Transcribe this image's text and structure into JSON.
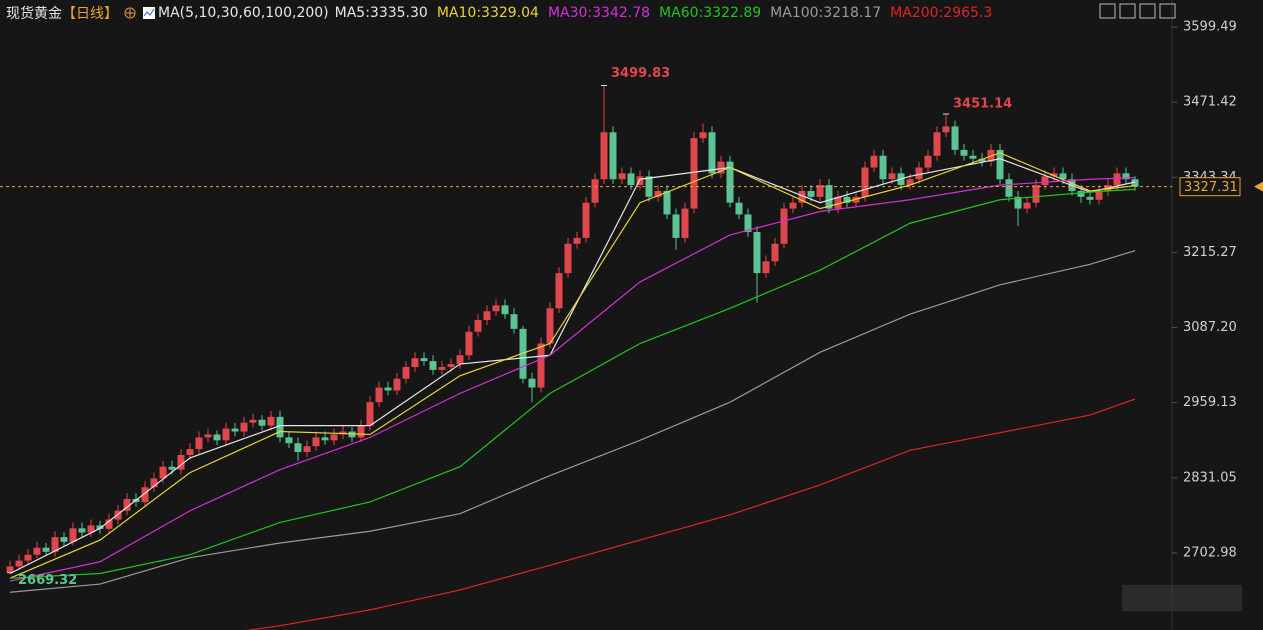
{
  "chart_data": {
    "type": "candlestick",
    "instrument": "现货黄金",
    "period": "【日线】",
    "indicator": "MA(5,10,30,60,100,200)",
    "up_color": "#e0474c",
    "down_color": "#5cc394",
    "ylim": [
      2571.7,
      3645.5
    ],
    "yticks": [
      3599.49,
      3471.42,
      3343.34,
      3215.27,
      {
        "value": 3087.2,
        "label": "3087.20"
      },
      2959.13,
      2831.05,
      2702.98
    ],
    "open": [
      2670,
      2680,
      2690,
      2700,
      2712,
      2705,
      2730,
      2722,
      2745,
      2738,
      2750,
      2744,
      2760,
      2775,
      2795,
      2790,
      2815,
      2830,
      2850,
      2845,
      2870,
      2880,
      2900,
      2905,
      2895,
      2915,
      2910,
      2925,
      2930,
      2920,
      2935,
      2900,
      2890,
      2875,
      2885,
      2900,
      2895,
      2905,
      2910,
      2900,
      2920,
      2960,
      2985,
      2980,
      3000,
      3020,
      3035,
      3030,
      3015,
      3020,
      3025,
      3040,
      3080,
      3100,
      3115,
      3125,
      3110,
      3085,
      3000,
      2985,
      3060,
      3120,
      3180,
      3230,
      3240,
      3300,
      3340,
      3420,
      3340,
      3350,
      3330,
      3345,
      3310,
      3320,
      3280,
      3240,
      3290,
      3410,
      3420,
      3350,
      3370,
      3300,
      3280,
      3250,
      3180,
      3200,
      3230,
      3290,
      3300,
      3320,
      3310,
      3330,
      3290,
      3310,
      3300,
      3310,
      3360,
      3380,
      3340,
      3350,
      3330,
      3340,
      3360,
      3380,
      3420,
      3430,
      3390,
      3380,
      3375,
      3370,
      3390,
      3340,
      3310,
      3290,
      3300,
      3330,
      3345,
      3350,
      3340,
      3320,
      3310,
      3305,
      3320,
      3330,
      3350,
      3340
    ],
    "high": [
      2690,
      2700,
      2710,
      2722,
      2720,
      2740,
      2738,
      2755,
      2755,
      2760,
      2758,
      2770,
      2785,
      2805,
      2805,
      2825,
      2840,
      2860,
      2860,
      2880,
      2890,
      2910,
      2915,
      2912,
      2925,
      2925,
      2935,
      2940,
      2938,
      2945,
      2945,
      2910,
      2900,
      2895,
      2910,
      2910,
      2915,
      2920,
      2918,
      2930,
      2970,
      2995,
      2995,
      3010,
      3030,
      3045,
      3045,
      3040,
      3030,
      3035,
      3050,
      3090,
      3110,
      3125,
      3135,
      3135,
      3120,
      3090,
      3010,
      3070,
      3130,
      3190,
      3240,
      3250,
      3310,
      3350,
      3499.83,
      3430,
      3360,
      3360,
      3355,
      3355,
      3330,
      3330,
      3290,
      3300,
      3420,
      3435,
      3430,
      3380,
      3380,
      3310,
      3290,
      3260,
      3210,
      3240,
      3300,
      3310,
      3330,
      3330,
      3340,
      3340,
      3320,
      3320,
      3320,
      3370,
      3390,
      3390,
      3360,
      3360,
      3350,
      3370,
      3390,
      3430,
      3451.14,
      3440,
      3400,
      3390,
      3385,
      3400,
      3400,
      3350,
      3320,
      3310,
      3340,
      3355,
      3360,
      3360,
      3350,
      3330,
      3320,
      3330,
      3340,
      3360,
      3360,
      3345
    ],
    "low": [
      2669.32,
      2674,
      2684,
      2694,
      2698,
      2697,
      2715,
      2716,
      2730,
      2730,
      2736,
      2738,
      2752,
      2767,
      2782,
      2782,
      2807,
      2822,
      2837,
      2837,
      2862,
      2872,
      2892,
      2887,
      2887,
      2902,
      2902,
      2917,
      2912,
      2912,
      2892,
      2882,
      2860,
      2867,
      2877,
      2887,
      2887,
      2897,
      2892,
      2892,
      2912,
      2952,
      2972,
      2972,
      2992,
      3012,
      3022,
      3007,
      3007,
      3012,
      3017,
      3032,
      3072,
      3092,
      3107,
      3102,
      3077,
      2992,
      2960,
      2977,
      3052,
      3112,
      3172,
      3222,
      3232,
      3292,
      3332,
      3332,
      3332,
      3322,
      3322,
      3302,
      3302,
      3272,
      3220,
      3232,
      3282,
      3402,
      3342,
      3342,
      3292,
      3272,
      3242,
      3130,
      3172,
      3192,
      3222,
      3282,
      3292,
      3302,
      3302,
      3282,
      3282,
      3292,
      3292,
      3302,
      3352,
      3332,
      3332,
      3322,
      3322,
      3332,
      3352,
      3372,
      3412,
      3382,
      3372,
      3367,
      3362,
      3362,
      3332,
      3302,
      3260,
      3282,
      3292,
      3322,
      3337,
      3332,
      3312,
      3300,
      3297,
      3297,
      3312,
      3322,
      3332,
      3320
    ],
    "close": [
      2680,
      2690,
      2700,
      2712,
      2705,
      2730,
      2722,
      2745,
      2738,
      2750,
      2744,
      2760,
      2775,
      2795,
      2790,
      2815,
      2830,
      2850,
      2845,
      2870,
      2880,
      2900,
      2905,
      2895,
      2915,
      2910,
      2925,
      2930,
      2920,
      2935,
      2900,
      2890,
      2875,
      2885,
      2900,
      2895,
      2905,
      2910,
      2900,
      2920,
      2960,
      2985,
      2980,
      3000,
      3020,
      3035,
      3030,
      3015,
      3020,
      3025,
      3040,
      3080,
      3100,
      3115,
      3125,
      3110,
      3085,
      3000,
      2985,
      3060,
      3120,
      3180,
      3230,
      3240,
      3300,
      3340,
      3420,
      3340,
      3350,
      3330,
      3345,
      3310,
      3320,
      3280,
      3240,
      3290,
      3410,
      3420,
      3350,
      3370,
      3300,
      3280,
      3250,
      3180,
      3200,
      3230,
      3290,
      3300,
      3320,
      3310,
      3330,
      3290,
      3310,
      3300,
      3310,
      3360,
      3380,
      3340,
      3350,
      3330,
      3340,
      3360,
      3380,
      3420,
      3430,
      3390,
      3380,
      3375,
      3370,
      3390,
      3340,
      3310,
      3290,
      3300,
      3330,
      3345,
      3350,
      3340,
      3320,
      3310,
      3305,
      3320,
      3330,
      3350,
      3340,
      3327.31
    ],
    "ma_series": [
      {
        "name": "MA5",
        "color": "#e6e6e6",
        "x": [
          0,
          10,
          20,
          30,
          40,
          50,
          60,
          70,
          80,
          90,
          100,
          110,
          120,
          125
        ],
        "values": [
          2668,
          2745,
          2865,
          2920,
          2920,
          3025,
          3040,
          3340,
          3360,
          3300,
          3345,
          3375,
          3318,
          3335.3
        ],
        "value_labels": [
          null,
          null,
          null,
          null,
          null,
          null,
          null,
          null,
          null,
          null,
          null,
          null,
          null,
          "3335.30"
        ]
      },
      {
        "name": "MA10",
        "color": "#e8d43a",
        "x": [
          0,
          10,
          20,
          30,
          40,
          50,
          60,
          70,
          80,
          90,
          100,
          110,
          120,
          125
        ],
        "values": [
          2660,
          2725,
          2840,
          2910,
          2905,
          3005,
          3060,
          3300,
          3360,
          3290,
          3330,
          3385,
          3320,
          3329.04
        ],
        "value_labels": [
          null,
          null,
          null,
          null,
          null,
          null,
          null,
          null,
          null,
          null,
          null,
          null,
          null,
          "3329.04"
        ]
      },
      {
        "name": "MA30",
        "color": "#d62ed6",
        "x": [
          0,
          10,
          20,
          30,
          40,
          50,
          60,
          70,
          80,
          90,
          100,
          110,
          120,
          125
        ],
        "values": [
          2655,
          2688,
          2775,
          2845,
          2900,
          2975,
          3040,
          3165,
          3245,
          3285,
          3305,
          3330,
          3340,
          3342.78
        ],
        "value_labels": [
          null,
          null,
          null,
          null,
          null,
          null,
          null,
          null,
          null,
          null,
          null,
          null,
          null,
          "3342.78"
        ]
      },
      {
        "name": "MA60",
        "color": "#22c322",
        "x": [
          0,
          10,
          20,
          30,
          40,
          50,
          60,
          70,
          80,
          90,
          100,
          110,
          120,
          125
        ],
        "values": [
          2660,
          2668,
          2700,
          2755,
          2790,
          2850,
          2975,
          3060,
          3120,
          3185,
          3265,
          3305,
          3318,
          3322.89
        ],
        "value_labels": [
          null,
          null,
          null,
          null,
          null,
          null,
          null,
          null,
          null,
          null,
          null,
          null,
          null,
          "3322.89"
        ]
      },
      {
        "name": "MA100",
        "color": "#9a9a9a",
        "x": [
          0,
          10,
          20,
          30,
          40,
          50,
          60,
          70,
          80,
          90,
          100,
          110,
          120,
          125
        ],
        "values": [
          2636,
          2650,
          2695,
          2720,
          2740,
          2770,
          2835,
          2895,
          2960,
          3045,
          3110,
          3160,
          3195,
          3218.17
        ],
        "value_labels": [
          null,
          null,
          null,
          null,
          null,
          null,
          null,
          null,
          null,
          null,
          null,
          null,
          null,
          "3218.17"
        ]
      },
      {
        "name": "MA200",
        "color": "#e02424",
        "x": [
          25,
          30,
          40,
          50,
          60,
          70,
          80,
          90,
          100,
          110,
          120,
          125
        ],
        "values": [
          2568,
          2579,
          2606,
          2640,
          2682,
          2725,
          2768,
          2819,
          2878,
          2908,
          2938,
          2965.3
        ],
        "value_labels": [
          null,
          null,
          null,
          null,
          null,
          null,
          null,
          null,
          null,
          null,
          null,
          "2965.3"
        ]
      }
    ]
  }
}
